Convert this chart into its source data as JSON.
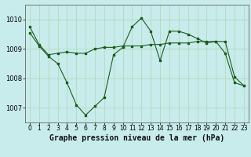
{
  "title": "Graphe pression niveau de la mer (hPa)",
  "bg_color": "#c8ecec",
  "grid_color": "#b0d4b0",
  "line_color": "#1a5c1a",
  "xlim": [
    -0.5,
    23.5
  ],
  "ylim": [
    1006.5,
    1010.5
  ],
  "yticks": [
    1007,
    1008,
    1009,
    1010
  ],
  "xticks": [
    0,
    1,
    2,
    3,
    4,
    5,
    6,
    7,
    8,
    9,
    10,
    11,
    12,
    13,
    14,
    15,
    16,
    17,
    18,
    19,
    20,
    21,
    22,
    23
  ],
  "series1_x": [
    0,
    1,
    2,
    3,
    4,
    5,
    6,
    7,
    8,
    9,
    10,
    11,
    12,
    13,
    14,
    15,
    16,
    17,
    18,
    19,
    20,
    21,
    22,
    23
  ],
  "series1_y": [
    1009.75,
    1009.15,
    1008.8,
    1008.85,
    1008.9,
    1008.85,
    1008.85,
    1009.0,
    1009.05,
    1009.05,
    1009.1,
    1009.1,
    1009.1,
    1009.15,
    1009.15,
    1009.2,
    1009.2,
    1009.2,
    1009.25,
    1009.25,
    1009.25,
    1008.85,
    1007.85,
    1007.75
  ],
  "series2_x": [
    0,
    1,
    2,
    3,
    4,
    5,
    6,
    7,
    8,
    9,
    10,
    11,
    12,
    13,
    14,
    15,
    16,
    17,
    18,
    19,
    20,
    21,
    22,
    23
  ],
  "series2_y": [
    1009.55,
    1009.1,
    1008.75,
    1008.5,
    1007.85,
    1007.1,
    1006.75,
    1007.05,
    1007.35,
    1008.8,
    1009.05,
    1009.75,
    1010.05,
    1009.6,
    1008.6,
    1009.6,
    1009.6,
    1009.5,
    1009.35,
    1009.2,
    1009.25,
    1009.25,
    1008.05,
    1007.75
  ],
  "tick_fontsize": 5.5,
  "ytick_fontsize": 6.0,
  "title_fontsize": 7.0
}
